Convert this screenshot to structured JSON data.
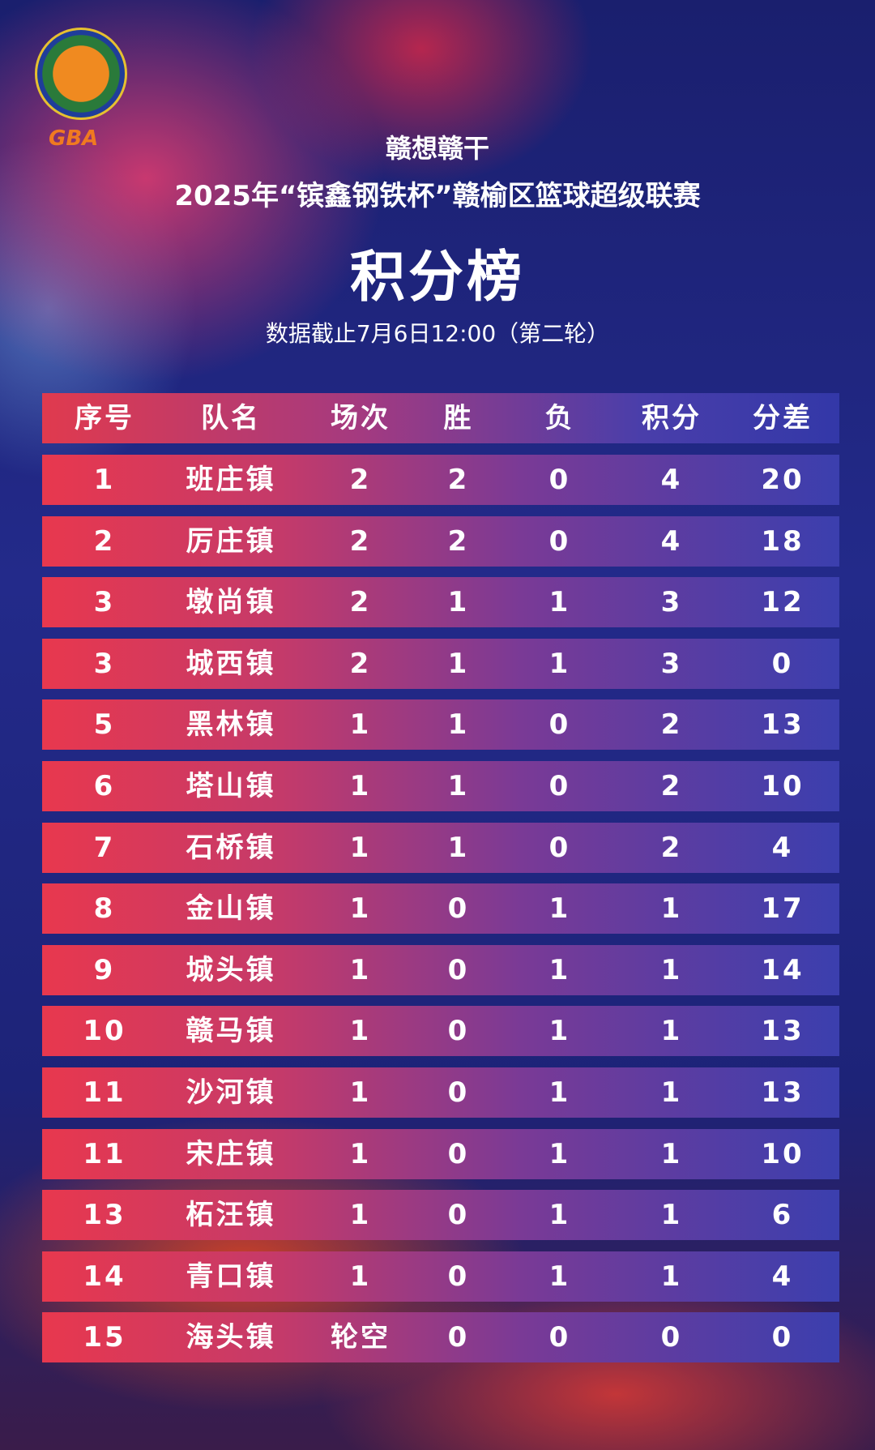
{
  "logo": {
    "text": "GBA"
  },
  "header": {
    "kicker": "赣想赣干",
    "event": "2025年“镔鑫钢铁杯”赣榆区篮球超级联赛",
    "title": "积分榜",
    "subtitle": "数据截止7月6日12:00（第二轮）"
  },
  "table": {
    "columns": [
      "序号",
      "队名",
      "场次",
      "胜",
      "负",
      "积分",
      "分差"
    ],
    "rows": [
      [
        1,
        "班庄镇",
        2,
        2,
        0,
        4,
        20
      ],
      [
        2,
        "厉庄镇",
        2,
        2,
        0,
        4,
        18
      ],
      [
        3,
        "墩尚镇",
        2,
        1,
        1,
        3,
        12
      ],
      [
        3,
        "城西镇",
        2,
        1,
        1,
        3,
        0
      ],
      [
        5,
        "黑林镇",
        1,
        1,
        0,
        2,
        13
      ],
      [
        6,
        "塔山镇",
        1,
        1,
        0,
        2,
        10
      ],
      [
        7,
        "石桥镇",
        1,
        1,
        0,
        2,
        4
      ],
      [
        8,
        "金山镇",
        1,
        0,
        1,
        1,
        17
      ],
      [
        9,
        "城头镇",
        1,
        0,
        1,
        1,
        14
      ],
      [
        10,
        "赣马镇",
        1,
        0,
        1,
        1,
        13
      ],
      [
        11,
        "沙河镇",
        1,
        0,
        1,
        1,
        13
      ],
      [
        11,
        "宋庄镇",
        1,
        0,
        1,
        1,
        10
      ],
      [
        13,
        "柘汪镇",
        1,
        0,
        1,
        1,
        6
      ],
      [
        14,
        "青口镇",
        1,
        0,
        1,
        1,
        4
      ],
      [
        15,
        "海头镇",
        "轮空",
        0,
        0,
        0,
        0
      ]
    ]
  }
}
